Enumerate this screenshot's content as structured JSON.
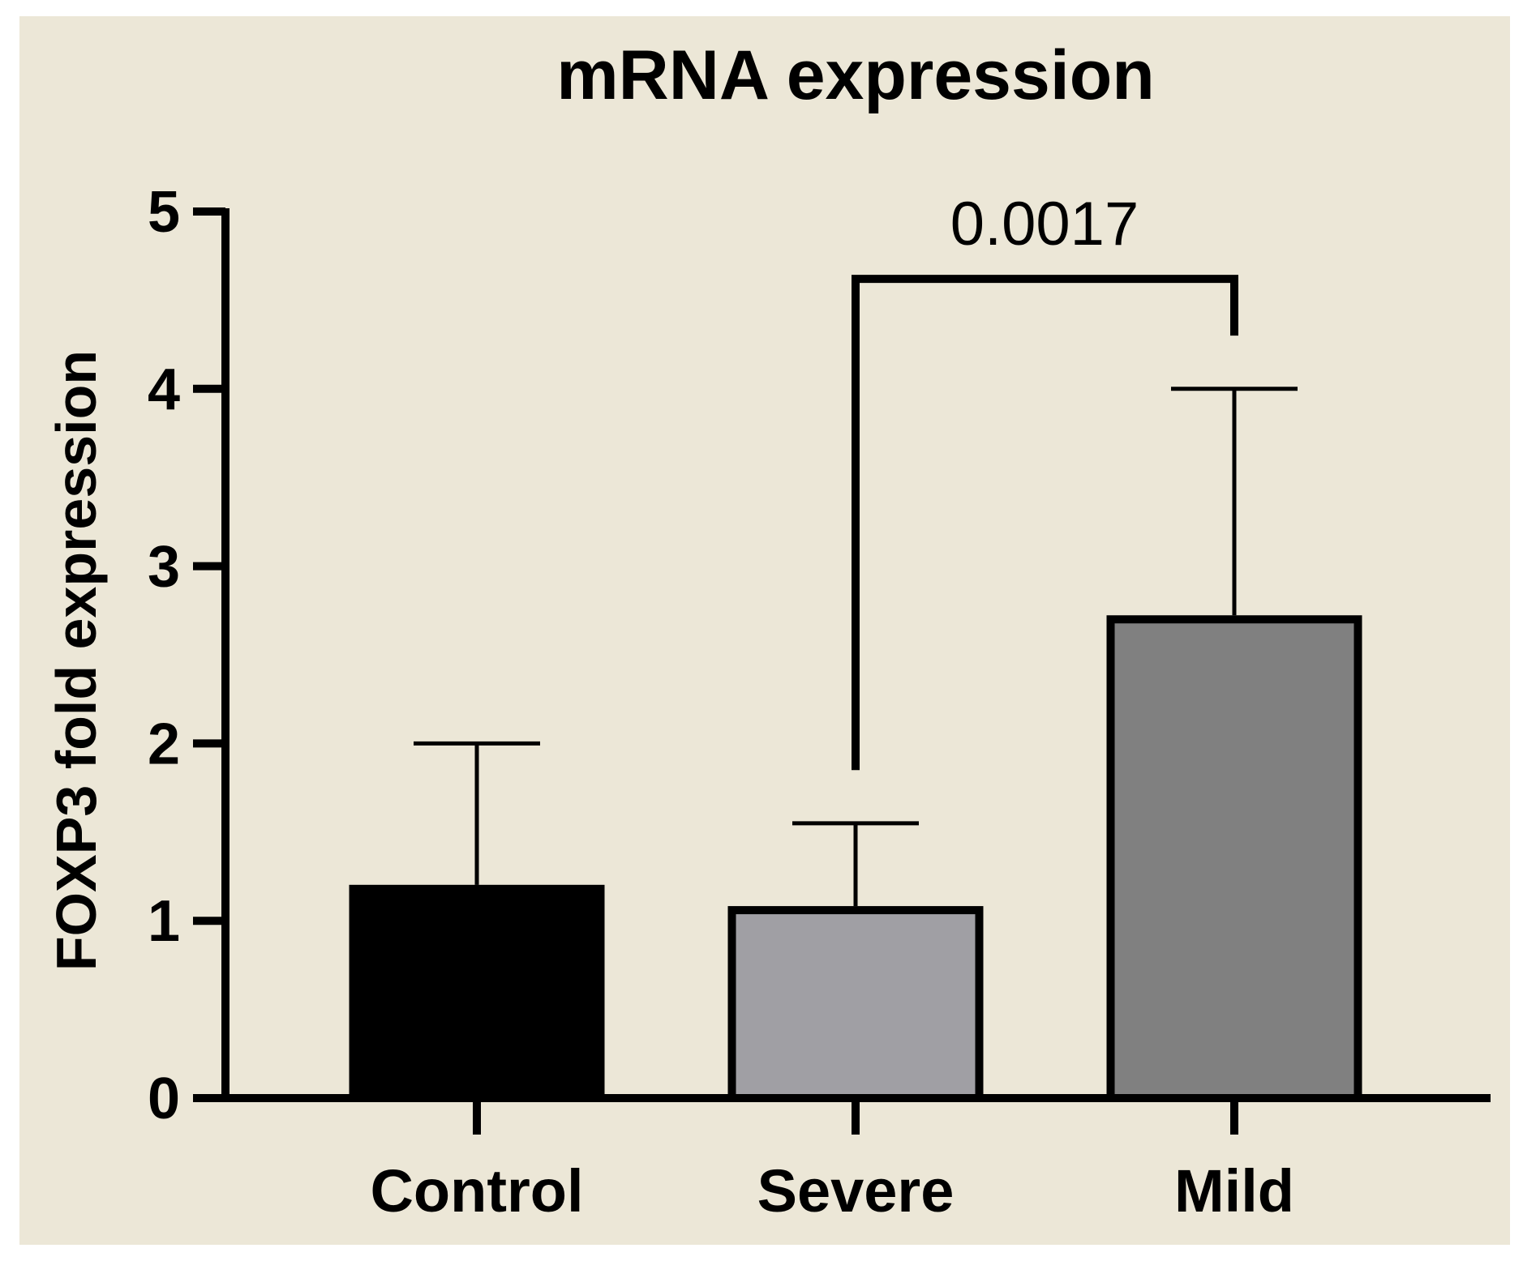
{
  "chart_data": {
    "type": "bar",
    "title": "mRNA expression",
    "xlabel": "",
    "ylabel": "FOXP3 fold expression",
    "categories": [
      "Control",
      "Severe",
      "Mild"
    ],
    "values": [
      1.18,
      1.06,
      2.7
    ],
    "error_upper": [
      2.0,
      1.55,
      4.0
    ],
    "bar_colors": [
      "#000000",
      "#a09fa4",
      "#808080"
    ],
    "ylim": [
      0,
      5
    ],
    "yticks": [
      0,
      1,
      2,
      3,
      4,
      5
    ],
    "ytick_labels": [
      "0",
      "1",
      "2",
      "3",
      "4",
      "5"
    ],
    "grid": false,
    "comparison": {
      "from": "Severe",
      "to": "Mild",
      "label": "0.0017",
      "bracket_y": 4.62,
      "left_leg_bottom": 1.85,
      "right_leg_bottom": 4.3
    },
    "background_color": "#ece7d7"
  }
}
